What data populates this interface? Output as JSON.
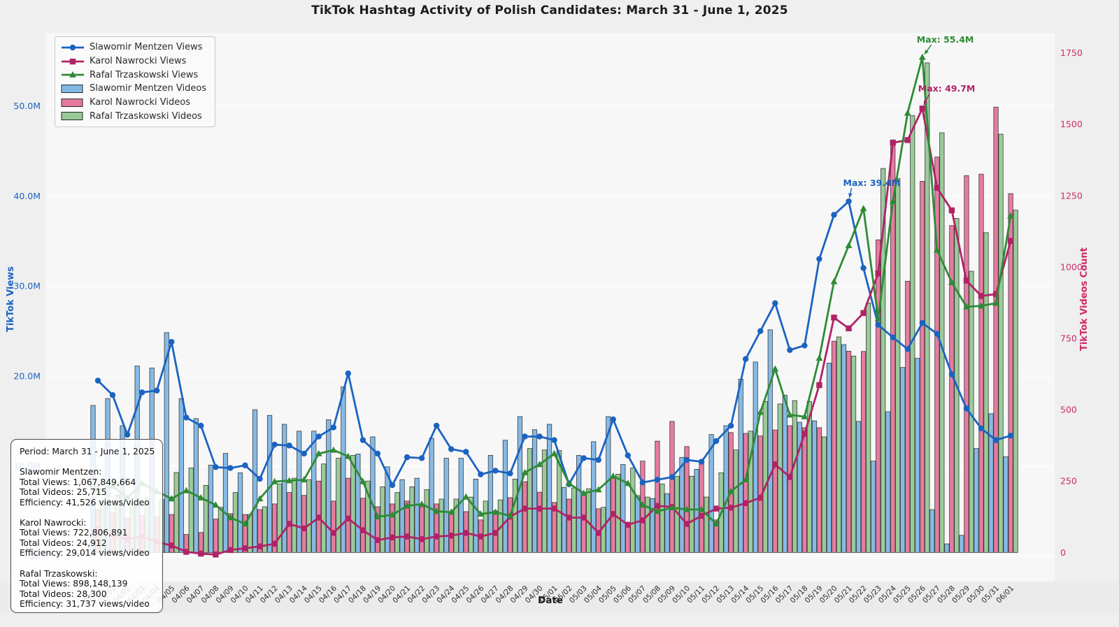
{
  "figure": {
    "title": "TikTok Hashtag Activity of Polish Candidates: March 31 - June 1, 2025",
    "xlabel": "Date",
    "ylabel_left": "TikTok Views",
    "ylabel_right": "TikTok Videos Count"
  },
  "colors": {
    "mentzen_line": "#1b63c1",
    "mentzen_bar": "#6cace0",
    "nawrocki_line": "#b02366",
    "nawrocki_bar": "#e2608c",
    "trzaskowski_line": "#2e8b35",
    "trzaskowski_bar": "#85bf85",
    "left_axis": "#1b63c1",
    "right_axis": "#cf2a68",
    "plot_bg": "#f7f7f7",
    "figure_bg": "#efefef",
    "tick_band": "#ebebeb"
  },
  "legend": {
    "items": [
      {
        "label": "Slawomir Mentzen Views",
        "type": "line",
        "marker": "circle",
        "color": "#1b63c1"
      },
      {
        "label": "Karol Nawrocki Views",
        "type": "line",
        "marker": "square",
        "color": "#b02366"
      },
      {
        "label": "Rafal Trzaskowski Views",
        "type": "line",
        "marker": "triangle",
        "color": "#2e8b35"
      },
      {
        "label": "Slawomir Mentzen Videos",
        "type": "patch",
        "color": "#6cace0"
      },
      {
        "label": "Karol Nawrocki Videos",
        "type": "patch",
        "color": "#e2608c"
      },
      {
        "label": "Rafal Trzaskowski Videos",
        "type": "patch",
        "color": "#85bf85"
      }
    ]
  },
  "stats_box": {
    "lines": [
      "Period: March 31 - June 1, 2025",
      "",
      "Slawomir Mentzen:",
      "Total Views: 1,067,849,664",
      "Total Videos: 25,715",
      "Efficiency: 41,526 views/video",
      "",
      "Karol Nawrocki:",
      "Total Views: 722,806,891",
      "Total Videos: 24,912",
      "Efficiency: 29,014 views/video",
      "",
      "Rafal Trzaskowski:",
      "Total Views: 898,148,139",
      "Total Videos: 28,300",
      "Efficiency: 31,737 views/video"
    ]
  },
  "axes": {
    "left_ticks": [
      {
        "label": "0K",
        "value": 0
      },
      {
        "label": "10.0M",
        "value": 10
      },
      {
        "label": "20.0M",
        "value": 20
      },
      {
        "label": "30.0M",
        "value": 30
      },
      {
        "label": "40.0M",
        "value": 40
      },
      {
        "label": "50.0M",
        "value": 50
      }
    ],
    "right_ticks": [
      {
        "label": "0",
        "value": 0
      },
      {
        "label": "250",
        "value": 250
      },
      {
        "label": "500",
        "value": 500
      },
      {
        "label": "750",
        "value": 750
      },
      {
        "label": "1000",
        "value": 1000
      },
      {
        "label": "1250",
        "value": 1250
      },
      {
        "label": "1500",
        "value": 1500
      },
      {
        "label": "1750",
        "value": 1750
      }
    ]
  },
  "chart_data": {
    "type": "line+bar",
    "title": "TikTok Hashtag Activity of Polish Candidates: March 31 - June 1, 2025",
    "xlabel": "Date",
    "ylabel_left": "TikTok Views",
    "ylabel_right": "TikTok Videos Count",
    "ylim_left_millions": [
      -2.8,
      58.1
    ],
    "ylim_right_count": [
      -102,
      1820
    ],
    "grid": true,
    "legend_position": "upper left",
    "dates": [
      "03/31",
      "04/01",
      "04/02",
      "04/03",
      "04/04",
      "04/05",
      "04/06",
      "04/07",
      "04/08",
      "04/09",
      "04/10",
      "04/11",
      "04/12",
      "04/13",
      "04/14",
      "04/15",
      "04/16",
      "04/17",
      "04/18",
      "04/19",
      "04/20",
      "04/21",
      "04/22",
      "04/23",
      "04/24",
      "04/25",
      "04/26",
      "04/27",
      "04/28",
      "04/29",
      "04/30",
      "05/01",
      "05/02",
      "05/03",
      "05/04",
      "05/05",
      "05/06",
      "05/07",
      "05/08",
      "05/09",
      "05/10",
      "05/11",
      "05/12",
      "05/13",
      "05/14",
      "05/15",
      "05/16",
      "05/17",
      "05/18",
      "05/19",
      "05/20",
      "05/21",
      "05/22",
      "05/23",
      "05/24",
      "05/25",
      "05/26",
      "05/27",
      "05/28",
      "05/29",
      "05/30",
      "05/31",
      "06/01"
    ],
    "series": [
      {
        "name": "Slawomir Mentzen Views",
        "type": "line",
        "axis": "left",
        "unit": "M views",
        "marker": "circle",
        "color": "#1b63c1",
        "values": [
          19.5,
          17.9,
          13.5,
          18.2,
          18.4,
          23.8,
          15.4,
          14.5,
          9.9,
          9.8,
          10.1,
          8.6,
          12.4,
          12.3,
          11.4,
          13.3,
          14.3,
          20.3,
          12.9,
          11.4,
          7.9,
          11.0,
          10.9,
          14.5,
          11.9,
          11.6,
          9.1,
          9.5,
          9.2,
          13.3,
          13.3,
          12.9,
          8.0,
          10.9,
          10.7,
          15.2,
          11.2,
          8.2,
          8.5,
          8.8,
          10.7,
          10.5,
          12.8,
          14.5,
          21.9,
          25.0,
          28.1,
          22.9,
          23.4,
          33.0,
          37.9,
          39.4,
          32.0,
          25.7,
          24.3,
          23.0,
          25.9,
          24.7,
          20.2,
          16.4,
          14.2,
          12.9,
          13.4
        ]
      },
      {
        "name": "Karol Nawrocki Views",
        "type": "line",
        "axis": "left",
        "unit": "M views",
        "marker": "square",
        "color": "#b02366",
        "values": [
          3.0,
          2.4,
          1.9,
          2.2,
          1.6,
          1.2,
          0.5,
          0.3,
          0.2,
          0.7,
          0.9,
          1.1,
          1.4,
          3.6,
          3.1,
          4.3,
          2.6,
          4.2,
          2.9,
          1.8,
          2.1,
          2.2,
          1.9,
          2.2,
          2.3,
          2.6,
          2.2,
          2.6,
          4.4,
          5.3,
          5.3,
          5.3,
          4.3,
          4.3,
          2.6,
          4.7,
          3.5,
          4.0,
          5.6,
          5.5,
          3.6,
          4.5,
          5.3,
          5.4,
          5.9,
          6.5,
          10.2,
          8.8,
          13.6,
          19.0,
          26.5,
          25.3,
          27.0,
          31.4,
          45.9,
          46.2,
          49.7,
          40.9,
          38.4,
          30.6,
          28.9,
          29.1,
          35.0
        ]
      },
      {
        "name": "Rafal Trzaskowski Views",
        "type": "line",
        "axis": "left",
        "unit": "M views",
        "marker": "triangle",
        "color": "#2e8b35",
        "values": [
          7.4,
          7.8,
          6.5,
          8.1,
          7.2,
          6.4,
          7.3,
          6.5,
          5.7,
          4.3,
          3.6,
          6.4,
          8.3,
          8.4,
          8.5,
          11.4,
          11.8,
          11.1,
          8.3,
          4.4,
          4.6,
          5.6,
          5.8,
          5.0,
          4.9,
          6.6,
          4.7,
          4.9,
          4.5,
          9.3,
          10.2,
          11.4,
          8.1,
          7.0,
          7.4,
          8.9,
          8.1,
          5.7,
          5.0,
          5.4,
          5.2,
          5.2,
          3.6,
          7.2,
          8.5,
          16.0,
          20.8,
          15.7,
          15.5,
          22.0,
          30.5,
          34.5,
          38.6,
          26.4,
          39.4,
          49.2,
          55.4,
          34.0,
          30.4,
          27.7,
          27.8,
          28.1,
          37.8
        ]
      },
      {
        "name": "Slawomir Mentzen Videos",
        "type": "bar",
        "axis": "right",
        "unit": "videos",
        "color": "#6cace0",
        "values": [
          515,
          539,
          444,
          653,
          646,
          770,
          539,
          469,
          306,
          347,
          279,
          500,
          480,
          449,
          425,
          425,
          465,
          580,
          345,
          405,
          300,
          255,
          260,
          400,
          330,
          330,
          257,
          340,
          393,
          476,
          430,
          449,
          228,
          340,
          388,
          476,
          308,
          199,
          189,
          206,
          333,
          291,
          413,
          444,
          607,
          667,
          780,
          551,
          456,
          461,
          663,
          728,
          459,
          320,
          493,
          648,
          680,
          150,
          30,
          60,
          364,
          486,
          335
        ]
      },
      {
        "name": "Karol Nawrocki Videos",
        "type": "bar",
        "axis": "right",
        "unit": "videos",
        "color": "#e2608c",
        "values": [
          150,
          140,
          120,
          130,
          125,
          133,
          63,
          70,
          117,
          136,
          133,
          150,
          170,
          210,
          200,
          250,
          180,
          260,
          190,
          160,
          170,
          180,
          160,
          170,
          143,
          143,
          114,
          146,
          192,
          248,
          211,
          175,
          187,
          201,
          153,
          260,
          92,
          320,
          390,
          459,
          371,
          323,
          114,
          420,
          417,
          408,
          429,
          444,
          437,
          437,
          740,
          705,
          704,
          1095,
          1445,
          950,
          1300,
          1385,
          1145,
          1320,
          1325,
          1560,
          1257
        ]
      },
      {
        "name": "Rafal Trzaskowski Videos",
        "type": "bar",
        "axis": "right",
        "unit": "videos",
        "color": "#85bf85",
        "values": [
          180,
          200,
          170,
          190,
          185,
          280,
          296,
          235,
          158,
          210,
          133,
          160,
          240,
          260,
          255,
          310,
          330,
          340,
          250,
          230,
          210,
          230,
          220,
          187,
          187,
          194,
          180,
          184,
          257,
          364,
          359,
          357,
          226,
          223,
          158,
          274,
          296,
          194,
          240,
          267,
          267,
          194,
          279,
          359,
          425,
          529,
          520,
          532,
          529,
          405,
          755,
          688,
          874,
          1345,
          1310,
          1530,
          1715,
          1470,
          1170,
          985,
          1120,
          1465,
          1199
        ]
      }
    ],
    "annotations": [
      {
        "text": "Max: 39.4M",
        "series": 0,
        "date": "05/21",
        "value": 39.4,
        "color": "#1b63c1"
      },
      {
        "text": "Max: 49.7M",
        "series": 1,
        "date": "05/26",
        "value": 49.7,
        "color": "#b02366"
      },
      {
        "text": "Max: 55.4M",
        "series": 2,
        "date": "05/26",
        "value": 55.4,
        "color": "#2e8b35"
      }
    ]
  }
}
